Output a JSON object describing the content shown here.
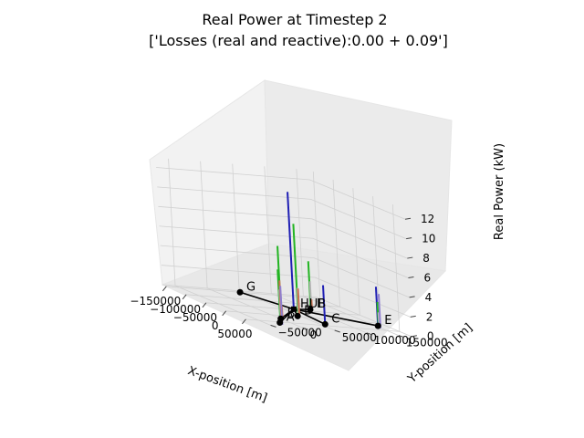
{
  "chart_data": {
    "type": "3d-bar",
    "title": "Real Power at Timestep 2",
    "subtitle": "['Losses (real and reactive):0.00 + 0.09']",
    "xlabel": "X-position [m]",
    "ylabel": "Y-position [m]",
    "zlabel": "Real Power (kW)",
    "xlim": [
      -160000,
      80000
    ],
    "ylim": [
      -70000,
      170000
    ],
    "zlim": [
      0,
      13
    ],
    "x_ticks": [
      "−150000",
      "−100000",
      "−50000",
      "0",
      "50000"
    ],
    "x_tick_values": [
      -150000,
      -100000,
      -50000,
      0,
      50000
    ],
    "y_ticks": [
      "−50000",
      "0",
      "50000",
      "100000",
      "150000"
    ],
    "y_tick_values": [
      -50000,
      0,
      50000,
      100000,
      150000
    ],
    "z_ticks": [
      "0",
      "2",
      "4",
      "6",
      "8",
      "10",
      "12"
    ],
    "z_tick_values": [
      0,
      2,
      4,
      6,
      8,
      10,
      12
    ],
    "grid": true,
    "phase_colors": [
      "#1f1fb4",
      "#22b422",
      "#b4b4b4",
      "#c87050",
      "#9080d0"
    ],
    "nodes": [
      {
        "label": "HUB",
        "x": -55000,
        "y": 70000
      },
      {
        "label": "A",
        "x": 55000,
        "y": -20000
      },
      {
        "label": "B",
        "x": 25000,
        "y": 0
      },
      {
        "label": "C",
        "x": 40000,
        "y": 60000
      },
      {
        "label": "D",
        "x": -5000,
        "y": 45000
      },
      {
        "label": "E",
        "x": 20000,
        "y": 155000
      },
      {
        "label": "F",
        "x": -62000,
        "y": 100000
      },
      {
        "label": "G",
        "x": -150000,
        "y": 45000
      }
    ],
    "edges": [
      [
        "HUB",
        "A"
      ],
      [
        "HUB",
        "B"
      ],
      [
        "HUB",
        "C"
      ],
      [
        "HUB",
        "D"
      ],
      [
        "HUB",
        "E"
      ],
      [
        "HUB",
        "F"
      ],
      [
        "HUB",
        "G"
      ]
    ],
    "bars": [
      {
        "node": "HUB",
        "values": [
          12.0,
          0,
          0,
          0,
          0
        ]
      },
      {
        "node": "F",
        "values": [
          0,
          5.0,
          3.0,
          1.2,
          0
        ]
      },
      {
        "node": "D",
        "values": [
          0,
          9.5,
          3.0,
          3.0,
          0
        ]
      },
      {
        "node": "B",
        "values": [
          0,
          7.5,
          3.0,
          1.5,
          0
        ]
      },
      {
        "node": "A",
        "values": [
          0,
          5.5,
          3.5,
          4.5,
          4.0
        ]
      },
      {
        "node": "C",
        "values": [
          4.0,
          0,
          0,
          0,
          0
        ]
      },
      {
        "node": "E",
        "values": [
          4.0,
          2.5,
          1.5,
          0,
          3.5
        ]
      }
    ]
  }
}
